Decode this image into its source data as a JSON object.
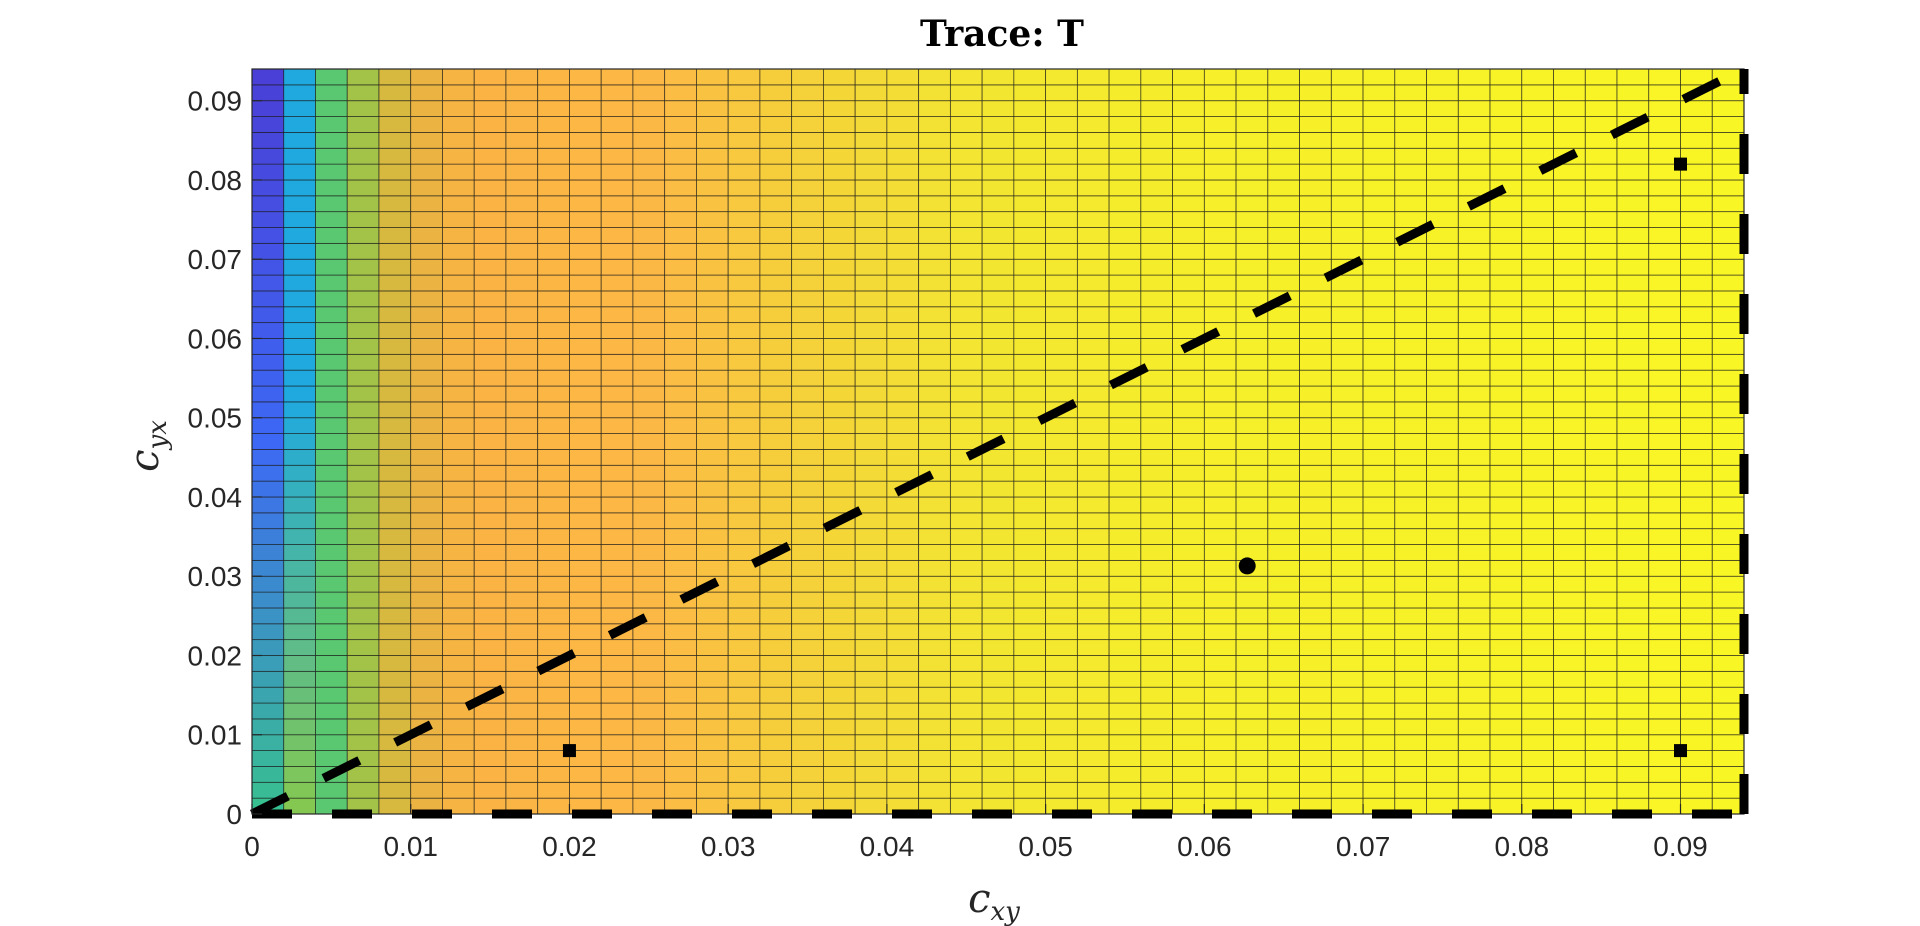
{
  "chart_data": {
    "type": "heatmap",
    "title": "Trace:  T",
    "xlabel": {
      "base": "c",
      "sub": "xy"
    },
    "ylabel": {
      "base": "c",
      "sub": "yx"
    },
    "xlim": [
      0,
      0.094
    ],
    "ylim": [
      0,
      0.094
    ],
    "x_ticks": [
      0,
      0.01,
      0.02,
      0.03,
      0.04,
      0.05,
      0.06,
      0.07,
      0.08,
      0.09
    ],
    "x_tick_labels": [
      "0",
      "0.01",
      "0.02",
      "0.03",
      "0.04",
      "0.05",
      "0.06",
      "0.07",
      "0.08",
      "0.09"
    ],
    "y_ticks": [
      0,
      0.01,
      0.02,
      0.03,
      0.04,
      0.05,
      0.06,
      0.07,
      0.08,
      0.09
    ],
    "y_tick_labels": [
      "0",
      "0.01",
      "0.02",
      "0.03",
      "0.04",
      "0.05",
      "0.06",
      "0.07",
      "0.08",
      "0.09"
    ],
    "grid": {
      "nx": 47,
      "ny": 47,
      "cell_edges": true
    },
    "colormap": "parula",
    "column_color_stops": [
      {
        "x": 0.0,
        "color": "#4a3fd6"
      },
      {
        "x": 0.002,
        "color": "#1fa9de"
      },
      {
        "x": 0.004,
        "color": "#35c78e"
      },
      {
        "x": 0.006,
        "color": "#7ec654"
      },
      {
        "x": 0.008,
        "color": "#c5be3b"
      },
      {
        "x": 0.01,
        "color": "#e6b341"
      },
      {
        "x": 0.014,
        "color": "#fbb443"
      },
      {
        "x": 0.025,
        "color": "#fcb845"
      },
      {
        "x": 0.035,
        "color": "#f5d239"
      },
      {
        "x": 0.045,
        "color": "#f3e531"
      },
      {
        "x": 0.06,
        "color": "#f6ef2a"
      },
      {
        "x": 0.094,
        "color": "#f9f625"
      }
    ],
    "first_column_gradient": {
      "top": "#4a3fd6",
      "middle": "#3d68f5",
      "bottom": "#39c28e"
    },
    "second_column_gradient": {
      "top": "#1fa9de",
      "bottom": "#86c94f"
    },
    "lines": [
      {
        "style": "dashed",
        "color": "#000000",
        "x": [
          0,
          0.094
        ],
        "y": [
          0,
          0.094
        ]
      },
      {
        "style": "dashed",
        "color": "#000000",
        "x": [
          0,
          0.094
        ],
        "y": [
          0,
          0
        ]
      },
      {
        "style": "dashed",
        "color": "#000000",
        "x": [
          0.094,
          0.094
        ],
        "y": [
          0,
          0.094
        ]
      }
    ],
    "markers": [
      {
        "shape": "circle",
        "x": 0.0627,
        "y": 0.0313
      },
      {
        "shape": "square",
        "x": 0.02,
        "y": 0.008
      },
      {
        "shape": "square",
        "x": 0.09,
        "y": 0.008
      },
      {
        "shape": "square",
        "x": 0.09,
        "y": 0.082
      }
    ]
  }
}
